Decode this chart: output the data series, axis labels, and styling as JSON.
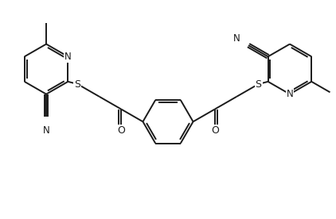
{
  "bg_color": "#ffffff",
  "line_color": "#1a1a1a",
  "line_width": 1.4,
  "font_size": 8.5,
  "figsize": [
    4.22,
    2.76
  ],
  "dpi": 100,
  "xlim": [
    -4.8,
    4.8
  ],
  "ylim": [
    -3.0,
    3.0
  ]
}
